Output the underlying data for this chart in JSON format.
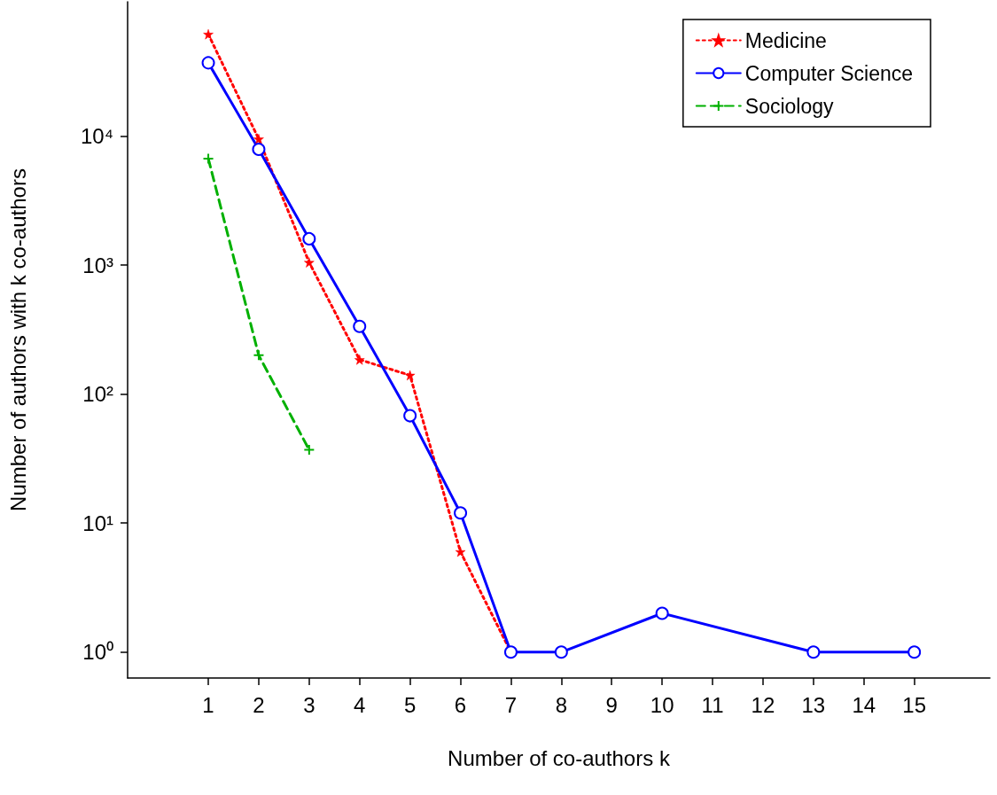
{
  "chart_data": {
    "type": "line",
    "xlabel": "Number of co-authors k",
    "ylabel": "Number of authors with k co-authors",
    "log": "y",
    "grid": false,
    "legend": "top right",
    "xlim": [
      -0.6,
      16.5
    ],
    "xticks": [
      1,
      2,
      3,
      4,
      5,
      6,
      7,
      8,
      9,
      10,
      11,
      12,
      13,
      14,
      15
    ],
    "ylim": [
      0.63,
      110000
    ],
    "yticks": [
      {
        "value": 1,
        "label": "10⁰"
      },
      {
        "value": 10,
        "label": "10¹"
      },
      {
        "value": 100,
        "label": "10²"
      },
      {
        "value": 1000,
        "label": "10³"
      },
      {
        "value": 10000,
        "label": "10⁴"
      }
    ],
    "series": [
      {
        "name": "Medicine",
        "color": "#ff0000",
        "marker": "star",
        "line_style": "dotted",
        "x": [
          1,
          2,
          3,
          4,
          5,
          6,
          7
        ],
        "values": [
          61600,
          9500,
          1050,
          185,
          140,
          6,
          1
        ]
      },
      {
        "name": "Computer Science",
        "color": "#0000ff",
        "marker": "circle",
        "line_style": "solid",
        "x": [
          1,
          2,
          3,
          4,
          5,
          6,
          7,
          8,
          10,
          13,
          15
        ],
        "values": [
          37000,
          7900,
          1600,
          335,
          68,
          12,
          1,
          1,
          2,
          1,
          1
        ]
      },
      {
        "name": "Sociology",
        "color": "#00b000",
        "marker": "cross",
        "line_style": "dashed",
        "x": [
          1,
          2,
          3
        ],
        "values": [
          6700,
          200,
          37
        ]
      }
    ]
  }
}
